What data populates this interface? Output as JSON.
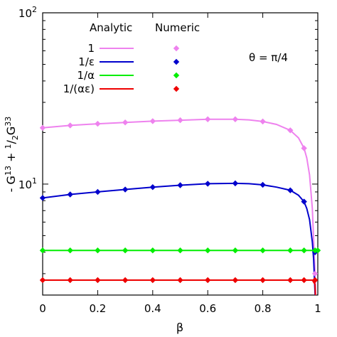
{
  "chart_data": {
    "type": "line",
    "xlabel": "β",
    "ylabel_parts": {
      "prefix": "- G",
      "sup1": "13",
      "mid": " + ",
      "frac_num": "1",
      "frac_sep": "/",
      "frac_den": "2",
      "g": "G",
      "sup2": "33"
    },
    "annotation": "θ = π/4",
    "xlim": [
      0,
      1
    ],
    "ylim": [
      2.25,
      100
    ],
    "yscale": "log",
    "x_ticks": [
      {
        "value": 0,
        "label": "0"
      },
      {
        "value": 0.2,
        "label": "0.2"
      },
      {
        "value": 0.4,
        "label": "0.4"
      },
      {
        "value": 0.6,
        "label": "0.6"
      },
      {
        "value": 0.8,
        "label": "0.8"
      },
      {
        "value": 1,
        "label": "1"
      }
    ],
    "y_major_ticks": [
      {
        "value": 10,
        "base": "10",
        "exp": "1"
      },
      {
        "value": 100,
        "base": "10",
        "exp": "2"
      }
    ],
    "legend": {
      "header_analytic": "Analytic",
      "header_numeric": "Numeric",
      "placement": "top-left"
    },
    "series": [
      {
        "name": "1",
        "color": "#ee82ee",
        "analytic_x": [
          0,
          0.1,
          0.2,
          0.3,
          0.4,
          0.5,
          0.6,
          0.7,
          0.75,
          0.8,
          0.85,
          0.9,
          0.93,
          0.95,
          0.96,
          0.97,
          0.98,
          0.99,
          0.995
        ],
        "analytic_y": [
          21.3,
          22.0,
          22.5,
          22.9,
          23.3,
          23.6,
          23.9,
          23.9,
          23.7,
          23.2,
          22.3,
          20.6,
          18.6,
          16.2,
          14.2,
          11.3,
          7.2,
          3.0,
          1.5
        ],
        "numeric_x": [
          0,
          0.1,
          0.2,
          0.3,
          0.4,
          0.5,
          0.6,
          0.7,
          0.8,
          0.9,
          0.95,
          0.99
        ],
        "numeric_y": [
          21.3,
          22.0,
          22.5,
          22.9,
          23.3,
          23.6,
          23.9,
          23.9,
          23.2,
          20.6,
          16.2,
          3.0
        ]
      },
      {
        "name": "1/ε",
        "color": "#0000cc",
        "analytic_x": [
          0,
          0.1,
          0.2,
          0.3,
          0.4,
          0.5,
          0.6,
          0.7,
          0.75,
          0.8,
          0.85,
          0.9,
          0.93,
          0.95,
          0.96,
          0.97,
          0.98,
          0.985,
          0.99,
          0.995
        ],
        "analytic_y": [
          8.3,
          8.7,
          9.0,
          9.3,
          9.6,
          9.85,
          10.05,
          10.1,
          10.05,
          9.9,
          9.6,
          9.2,
          8.6,
          7.9,
          7.2,
          6.2,
          4.6,
          3.6,
          2.3,
          1.2
        ],
        "numeric_x": [
          0,
          0.1,
          0.2,
          0.3,
          0.4,
          0.5,
          0.6,
          0.7,
          0.8,
          0.9,
          0.95,
          0.99
        ],
        "numeric_y": [
          8.3,
          8.7,
          9.0,
          9.3,
          9.6,
          9.85,
          10.05,
          10.1,
          9.9,
          9.2,
          7.9,
          4.0
        ]
      },
      {
        "name": "1/α",
        "color": "#00ee00",
        "analytic_x": [
          0,
          1
        ],
        "analytic_y": [
          4.1,
          4.1
        ],
        "numeric_x": [
          0,
          0.1,
          0.2,
          0.3,
          0.4,
          0.5,
          0.6,
          0.7,
          0.8,
          0.9,
          0.95,
          0.99,
          1.0
        ],
        "numeric_y": [
          4.1,
          4.1,
          4.1,
          4.1,
          4.1,
          4.1,
          4.1,
          4.1,
          4.1,
          4.1,
          4.1,
          4.1,
          4.1
        ]
      },
      {
        "name": "1/(αε)",
        "color": "#ee0000",
        "analytic_x": [
          0,
          0.98,
          0.99,
          0.995
        ],
        "analytic_y": [
          2.75,
          2.75,
          2.6,
          1.5
        ],
        "numeric_x": [
          0,
          0.1,
          0.2,
          0.3,
          0.4,
          0.5,
          0.6,
          0.7,
          0.8,
          0.9,
          0.95,
          0.99
        ],
        "numeric_y": [
          2.75,
          2.75,
          2.75,
          2.75,
          2.75,
          2.75,
          2.75,
          2.75,
          2.75,
          2.75,
          2.75,
          2.75
        ]
      }
    ]
  }
}
